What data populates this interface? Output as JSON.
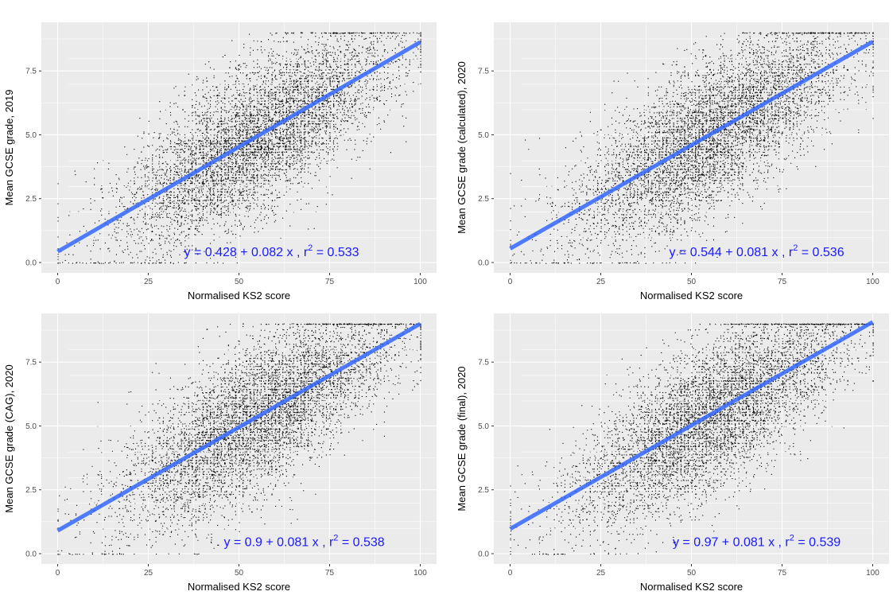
{
  "chart_data": [
    {
      "type": "scatter",
      "title": "",
      "xlabel": "Normalised KS2 score",
      "ylabel": "Mean GCSE grade, 2019",
      "xlim": [
        0,
        100
      ],
      "ylim": [
        0,
        9
      ],
      "xticks": [
        "0",
        "25",
        "50",
        "75",
        "100"
      ],
      "yticks": [
        "0.0",
        "2.5",
        "5.0",
        "7.5"
      ],
      "grid": true,
      "point_color": "#000000",
      "fit": {
        "intercept": 0.428,
        "slope": 0.082,
        "r2": 0.533,
        "color": "#3366ff"
      },
      "annotation": {
        "eq": "y = 0.428 + 0.082 x , r",
        "sup": "2",
        "tail": " = 0.533",
        "x": 59,
        "y": 0.25,
        "color": "#1a1aff"
      }
    },
    {
      "type": "scatter",
      "title": "",
      "xlabel": "Normalised KS2 score",
      "ylabel": "Mean GCSE grade (calculated), 2020",
      "xlim": [
        0,
        100
      ],
      "ylim": [
        0,
        9
      ],
      "xticks": [
        "0",
        "25",
        "50",
        "75",
        "100"
      ],
      "yticks": [
        "0.0",
        "2.5",
        "5.0",
        "7.5"
      ],
      "grid": true,
      "point_color": "#000000",
      "fit": {
        "intercept": 0.544,
        "slope": 0.081,
        "r2": 0.536,
        "color": "#3366ff"
      },
      "annotation": {
        "eq": "y = 0.544 + 0.081 x , r",
        "sup": "2",
        "tail": " = 0.536",
        "x": 68,
        "y": 0.25,
        "color": "#1a1aff"
      }
    },
    {
      "type": "scatter",
      "title": "",
      "xlabel": "Normalised KS2 score",
      "ylabel": "Mean GCSE grade (CAG), 2020",
      "xlim": [
        0,
        100
      ],
      "ylim": [
        0,
        9
      ],
      "xticks": [
        "0",
        "25",
        "50",
        "75",
        "100"
      ],
      "yticks": [
        "0.0",
        "2.5",
        "5.0",
        "7.5"
      ],
      "grid": true,
      "point_color": "#000000",
      "fit": {
        "intercept": 0.9,
        "slope": 0.081,
        "r2": 0.538,
        "color": "#3366ff"
      },
      "annotation": {
        "eq": "y = 0.9 + 0.081 x , r",
        "sup": "2",
        "tail": " = 0.538",
        "x": 68,
        "y": 0.3,
        "color": "#1a1aff"
      }
    },
    {
      "type": "scatter",
      "title": "",
      "xlabel": "Normalised KS2 score",
      "ylabel": "Mean GCSE grade (final), 2020",
      "xlim": [
        0,
        100
      ],
      "ylim": [
        0,
        9
      ],
      "xticks": [
        "0",
        "25",
        "50",
        "75",
        "100"
      ],
      "yticks": [
        "0.0",
        "2.5",
        "5.0",
        "7.5"
      ],
      "grid": true,
      "point_color": "#000000",
      "fit": {
        "intercept": 0.97,
        "slope": 0.081,
        "r2": 0.539,
        "color": "#3366ff"
      },
      "annotation": {
        "eq": "y = 0.97 + 0.081 x , r",
        "sup": "2",
        "tail": " = 0.539",
        "x": 68,
        "y": 0.3,
        "color": "#1a1aff"
      }
    }
  ]
}
